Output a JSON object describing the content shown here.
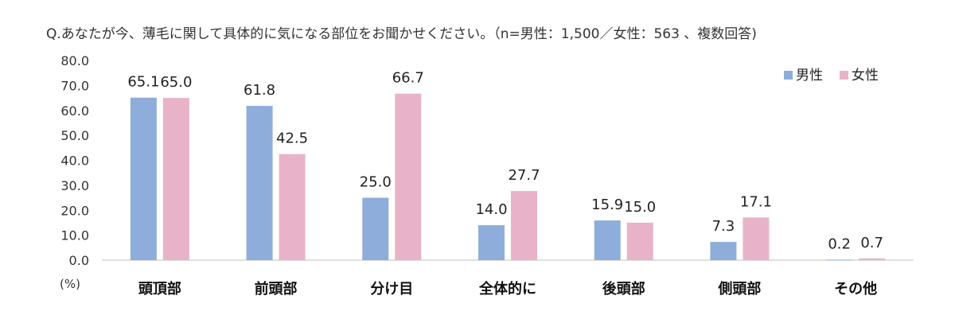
{
  "chart_data": {
    "type": "bar",
    "title": "Q.あなたが今、薄毛に関して具体的に気になる部位をお聞かせください。（n=男性：1,500／女性：563 、複数回答)",
    "ylabel": "(%)",
    "xlabel": "",
    "ylim": [
      0,
      80
    ],
    "yticks": [
      "0.0",
      "10.0",
      "20.0",
      "30.0",
      "40.0",
      "50.0",
      "60.0",
      "70.0",
      "80.0"
    ],
    "grid": false,
    "legend_position": "top-right",
    "categories": [
      "頭頂部",
      "前頭部",
      "分け目",
      "全体的に",
      "後頭部",
      "側頭部",
      "その他"
    ],
    "series": [
      {
        "name": "男性",
        "color": "#8eadda",
        "values": [
          65.1,
          61.8,
          25.0,
          14.0,
          15.9,
          7.3,
          0.2
        ],
        "labels": [
          "65.1",
          "61.8",
          "25.0",
          "14.0",
          "15.9",
          "7.3",
          "0.2"
        ]
      },
      {
        "name": "女性",
        "color": "#e8b3c8",
        "values": [
          65.0,
          42.5,
          66.7,
          27.7,
          15.0,
          17.1,
          0.7
        ],
        "labels": [
          "65.0",
          "42.5",
          "66.7",
          "27.7",
          "15.0",
          "17.1",
          "0.7"
        ]
      }
    ]
  }
}
